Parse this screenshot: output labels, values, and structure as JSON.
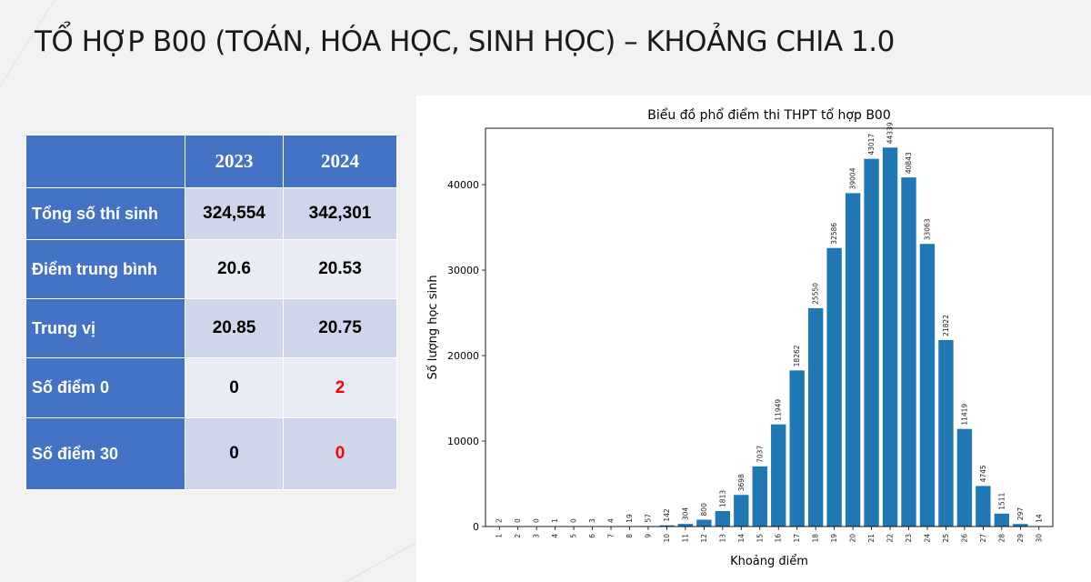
{
  "slide_title": "TỔ HỢP B00 (TOÁN, HÓA HỌC, SINH HỌC) – KHOẢNG CHIA 1.0",
  "table": {
    "columns": [
      "",
      "2023",
      "2024"
    ],
    "rows": [
      {
        "label": "Tổng số thí sinh",
        "v2023": "324,554",
        "v2024": "342,301",
        "red2024": false
      },
      {
        "label": "Điểm trung bình",
        "v2023": "20.6",
        "v2024": "20.53",
        "red2024": false
      },
      {
        "label": "Trung vị",
        "v2023": "20.85",
        "v2024": "20.75",
        "red2024": false
      },
      {
        "label": "Số điểm 0",
        "v2023": "0",
        "v2024": "2",
        "red2024": true
      },
      {
        "label": "Số điểm 30",
        "v2023": "0",
        "v2024": "0",
        "red2024": true
      }
    ]
  },
  "colors": {
    "bar": "#1f77b4",
    "header": "#4472c4",
    "highlight": "#ff0000"
  },
  "chart_data": {
    "type": "bar",
    "title": "Biểu đồ phổ điểm thi THPT tổ hợp B00",
    "xlabel": "Khoảng điểm",
    "ylabel": "Số lượng học sinh",
    "categories": [
      "1",
      "2",
      "3",
      "4",
      "5",
      "6",
      "7",
      "8",
      "9",
      "10",
      "11",
      "12",
      "13",
      "14",
      "15",
      "16",
      "17",
      "18",
      "19",
      "20",
      "21",
      "22",
      "23",
      "24",
      "25",
      "26",
      "27",
      "28",
      "29",
      "30"
    ],
    "values": [
      2,
      0,
      0,
      1,
      0,
      3,
      4,
      19,
      57,
      142,
      304,
      800,
      1813,
      3698,
      7037,
      11949,
      18262,
      25550,
      32586,
      39004,
      43017,
      44339,
      40843,
      33063,
      21822,
      11419,
      4745,
      1511,
      297,
      14
    ],
    "ylim": [
      0,
      46600
    ],
    "yticks": [
      0,
      10000,
      20000,
      30000,
      40000
    ],
    "grid": false,
    "data_labels": true
  }
}
